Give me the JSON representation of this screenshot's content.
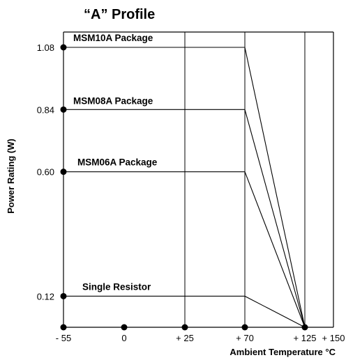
{
  "chart_data": {
    "type": "line",
    "title": "“A” Profile",
    "xlabel": "Ambient Temperature °C",
    "ylabel": "Power Rating (W)",
    "x_ticks": [
      {
        "value": -55,
        "label": "- 55",
        "dot": true
      },
      {
        "value": 0,
        "label": "0",
        "dot": true
      },
      {
        "value": 25,
        "label": "+ 25",
        "dot": true
      },
      {
        "value": 70,
        "label": "+ 70",
        "dot": true
      },
      {
        "value": 125,
        "label": "+ 125",
        "dot": true
      },
      {
        "value": 150,
        "label": "+ 150",
        "dot": false
      }
    ],
    "y_ticks": [
      {
        "value": 1.08,
        "label": "1.08"
      },
      {
        "value": 0.84,
        "label": "0.84"
      },
      {
        "value": 0.6,
        "label": "0.60"
      },
      {
        "value": 0.12,
        "label": "0.12"
      }
    ],
    "xlim": [
      -55,
      150
    ],
    "ylim": [
      0,
      1.08
    ],
    "vertical_gridlines": [
      25,
      70,
      125
    ],
    "series": [
      {
        "name": "MSM10A Package",
        "points": [
          [
            -55,
            1.08
          ],
          [
            70,
            1.08
          ],
          [
            125,
            0
          ]
        ]
      },
      {
        "name": "MSM08A Package",
        "points": [
          [
            -55,
            0.84
          ],
          [
            70,
            0.84
          ],
          [
            125,
            0
          ]
        ]
      },
      {
        "name": "MSM06A Package",
        "points": [
          [
            -55,
            0.6
          ],
          [
            70,
            0.6
          ],
          [
            125,
            0
          ]
        ]
      },
      {
        "name": "Single Resistor",
        "points": [
          [
            -55,
            0.12
          ],
          [
            70,
            0.12
          ],
          [
            125,
            0
          ]
        ]
      }
    ]
  }
}
